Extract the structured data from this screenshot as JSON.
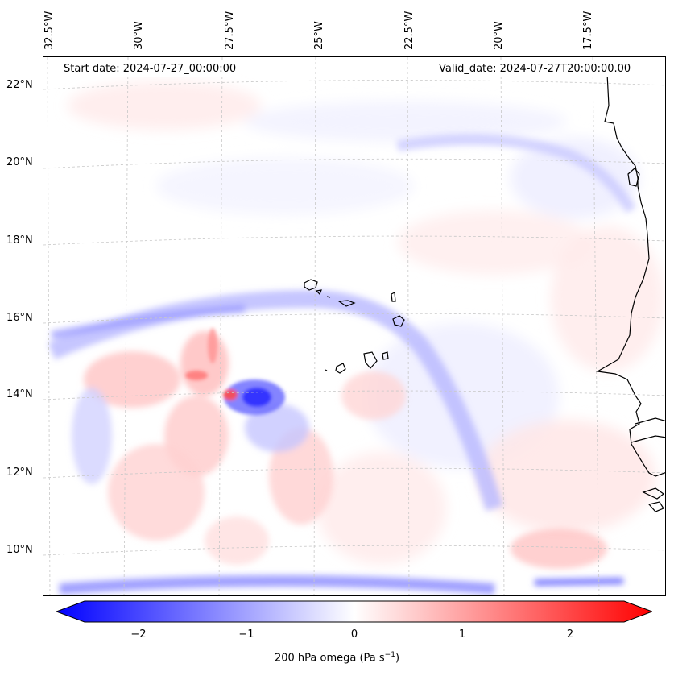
{
  "header": {
    "start_date": "Start date: 2024-07-27_00:00:00",
    "valid_date": "Valid_date: 2024-07-27T20:00:00.00"
  },
  "axes": {
    "lon_labels": [
      "32.5°W",
      "30°W",
      "27.5°W",
      "25°W",
      "22.5°W",
      "20°W",
      "17.5°W"
    ],
    "lat_labels": [
      "22°N",
      "20°N",
      "18°N",
      "16°N",
      "14°N",
      "12°N",
      "10°N"
    ]
  },
  "colorbar": {
    "tick_labels": [
      "−2",
      "−1",
      "0",
      "1",
      "2"
    ],
    "title": "200 hPa omega (Pa s",
    "title_sup": "−1",
    "title_end": ")",
    "min_color": "#0000ff",
    "mid_color": "#ffffff",
    "max_color": "#ff0000"
  },
  "map": {
    "projection": "Lambert conformal",
    "coastline_color": "#000000",
    "gridline_color": "#c8c8c8"
  }
}
